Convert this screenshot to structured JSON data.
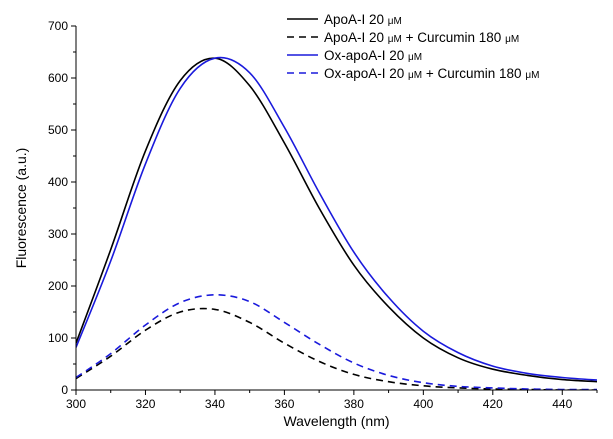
{
  "chart_data": {
    "type": "line",
    "xlabel": "Wavelength (nm)",
    "ylabel": "Fluorescence (a.u.)",
    "xlim": [
      300,
      450
    ],
    "ylim": [
      0,
      700
    ],
    "x_ticks": [
      300,
      320,
      340,
      360,
      380,
      400,
      420,
      440
    ],
    "y_ticks": [
      0,
      100,
      200,
      300,
      400,
      500,
      600,
      700
    ],
    "grid": false,
    "legend_position": "top-right",
    "x": [
      300,
      310,
      320,
      330,
      340,
      350,
      360,
      370,
      380,
      390,
      400,
      410,
      420,
      430,
      440,
      450
    ],
    "series": [
      {
        "legend": {
          "base": "ApoA-I 20 ",
          "unit": "μM",
          "rest": ""
        },
        "color": "#000000",
        "dash": "solid",
        "values": [
          90,
          270,
          460,
          595,
          638,
          585,
          475,
          350,
          240,
          160,
          100,
          62,
          40,
          28,
          20,
          16
        ]
      },
      {
        "legend": {
          "base": "ApoA-I 20 ",
          "unit": "μM",
          "rest": " + Curcumin 180 ",
          "unit2": "μM"
        },
        "color": "#000000",
        "dash": "dashed",
        "values": [
          22,
          65,
          115,
          150,
          155,
          130,
          90,
          55,
          30,
          16,
          8,
          4,
          2,
          1,
          0,
          0
        ]
      },
      {
        "legend": {
          "base": "Ox-apoA-I 20 ",
          "unit": "μM",
          "rest": ""
        },
        "color": "#1a1adc",
        "dash": "solid",
        "values": [
          82,
          248,
          435,
          580,
          638,
          610,
          505,
          380,
          265,
          178,
          113,
          72,
          46,
          32,
          24,
          19
        ]
      },
      {
        "legend": {
          "base": "Ox-apoA-I 20 ",
          "unit": "μM",
          "rest": " + Curcumin 180 ",
          "unit2": "μM"
        },
        "color": "#1a1adc",
        "dash": "dashed",
        "values": [
          24,
          70,
          125,
          168,
          183,
          170,
          130,
          88,
          52,
          28,
          14,
          7,
          4,
          2,
          1,
          1
        ]
      }
    ]
  }
}
